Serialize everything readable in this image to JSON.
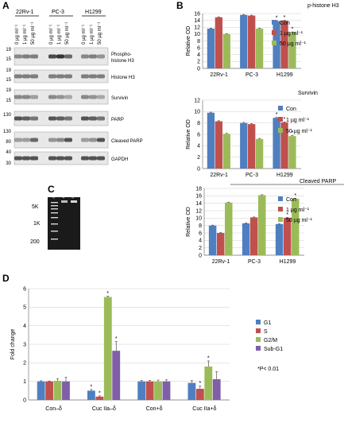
{
  "panel_letters": {
    "a": "A",
    "b": "B",
    "c": "C",
    "d": "D"
  },
  "blot": {
    "cell_lines": [
      "22Rv-1",
      "PC-3",
      "H1299"
    ],
    "lane_labels": [
      "0 µg ml⁻¹",
      "1 µg ml⁻¹",
      "50 µg ml⁻¹",
      "0 µg ml⁻¹",
      "1 µg ml⁻¹",
      "50 µg ml⁻¹",
      "0 µg ml⁻¹",
      "1 µg ml⁻¹",
      "50 µg ml⁻¹"
    ],
    "rows": [
      {
        "label": "Phospho-\nhistone H3",
        "mw": [
          "19",
          "15"
        ]
      },
      {
        "label": "Histone H3",
        "mw": [
          "19",
          "15"
        ]
      },
      {
        "label": "Survivin",
        "mw": [
          "19",
          "15"
        ]
      },
      {
        "label": "PARP",
        "mw": [
          "130"
        ]
      },
      {
        "label": "Cleaved PARP",
        "mw": [
          "130",
          "80"
        ]
      },
      {
        "label": "GAPDH",
        "mw": [
          "40",
          "30"
        ]
      }
    ]
  },
  "gel": {
    "markers": [
      "5K",
      "1K",
      "200"
    ],
    "lane_labels": [
      "Control",
      "1 µg ml⁻¹",
      "50 µg ml⁻¹"
    ]
  },
  "colors": {
    "con": "#4f7fc0",
    "c1": "#c0504d",
    "c50": "#9bbb59",
    "subg1": "#7f5fa8"
  },
  "chart_data": [
    {
      "type": "bar",
      "title": "p-histone H3",
      "ylabel": "Relative OD",
      "categories": [
        "22Rv-1",
        "PC-3",
        "H1299"
      ],
      "ylim": [
        0,
        16
      ],
      "yticks": [
        0,
        2,
        4,
        6,
        8,
        10,
        12,
        14,
        16
      ],
      "series": [
        {
          "name": "Con",
          "values": [
            11.6,
            15.6,
            13.8
          ]
        },
        {
          "name": "1 µg ml⁻¹",
          "values": [
            14.9,
            15.4,
            13.9
          ]
        },
        {
          "name": "50 µg ml⁻¹",
          "values": [
            10.0,
            11.6,
            10.5
          ]
        }
      ],
      "significance": [
        [
          false,
          false,
          true
        ],
        [
          false,
          false,
          true
        ],
        [
          false,
          false,
          true
        ]
      ],
      "star": "*"
    },
    {
      "type": "bar",
      "title": "Survivin",
      "ylabel": "Relative OD",
      "categories": [
        "22Rv-1",
        "PC-3",
        "H1299"
      ],
      "ylim": [
        0,
        12
      ],
      "yticks": [
        0,
        2,
        4,
        6,
        8,
        10,
        12
      ],
      "series": [
        {
          "name": "Con",
          "values": [
            9.8,
            8.0,
            8.9
          ]
        },
        {
          "name": "1 µg ml⁻¹",
          "values": [
            8.3,
            7.8,
            8.1
          ]
        },
        {
          "name": "50 µg ml⁻¹",
          "values": [
            6.1,
            5.2,
            5.7
          ]
        }
      ],
      "significance": [
        [
          false,
          false,
          true
        ],
        [
          false,
          false,
          true
        ],
        [
          false,
          false,
          true
        ]
      ],
      "star": "*"
    },
    {
      "type": "bar",
      "title": "Cleaved PARP",
      "ylabel": "Relative OD",
      "categories": [
        "22Rv-1",
        "PC-3",
        "H1299"
      ],
      "ylim": [
        0,
        18
      ],
      "yticks": [
        0,
        2,
        4,
        6,
        8,
        10,
        12,
        14,
        16,
        18
      ],
      "series": [
        {
          "name": "Con",
          "values": [
            8.0,
            8.6,
            8.4
          ]
        },
        {
          "name": "1 µg ml⁻¹",
          "values": [
            6.0,
            10.2,
            10.1
          ]
        },
        {
          "name": "50 µg ml⁻¹",
          "values": [
            14.2,
            16.2,
            15.2
          ]
        }
      ],
      "significance": [
        [
          false,
          false,
          true
        ],
        [
          false,
          false,
          true
        ],
        [
          false,
          false,
          true
        ]
      ],
      "star": "*"
    },
    {
      "type": "bar",
      "title": "",
      "ylabel": "Fold change",
      "categories": [
        "Con–δ",
        "Cuc IIa–δ",
        "Con+δ",
        "Cuc IIa+δ"
      ],
      "ylim": [
        0,
        6
      ],
      "yticks": [
        0,
        1,
        2,
        3,
        4,
        5,
        6
      ],
      "series": [
        {
          "name": "G1",
          "values": [
            1.0,
            0.5,
            1.0,
            0.92
          ]
        },
        {
          "name": "S",
          "values": [
            1.0,
            0.18,
            1.0,
            0.6
          ]
        },
        {
          "name": "G2/M",
          "values": [
            1.03,
            5.55,
            1.0,
            1.8
          ]
        },
        {
          "name": "Sub-G1",
          "values": [
            1.0,
            2.65,
            1.0,
            1.12
          ]
        }
      ],
      "errors": [
        [
          0.03,
          0.06,
          0.05,
          0.12
        ],
        [
          0.02,
          0.04,
          0.05,
          0.15
        ],
        [
          0.12,
          0.05,
          0.07,
          0.3
        ],
        [
          0.22,
          0.5,
          0.08,
          0.4
        ]
      ],
      "significance": [
        [
          false,
          true,
          false,
          false
        ],
        [
          false,
          true,
          false,
          true
        ],
        [
          false,
          true,
          false,
          true
        ],
        [
          false,
          true,
          false,
          false
        ]
      ],
      "star": "*",
      "note": "*P< 0.01"
    }
  ]
}
